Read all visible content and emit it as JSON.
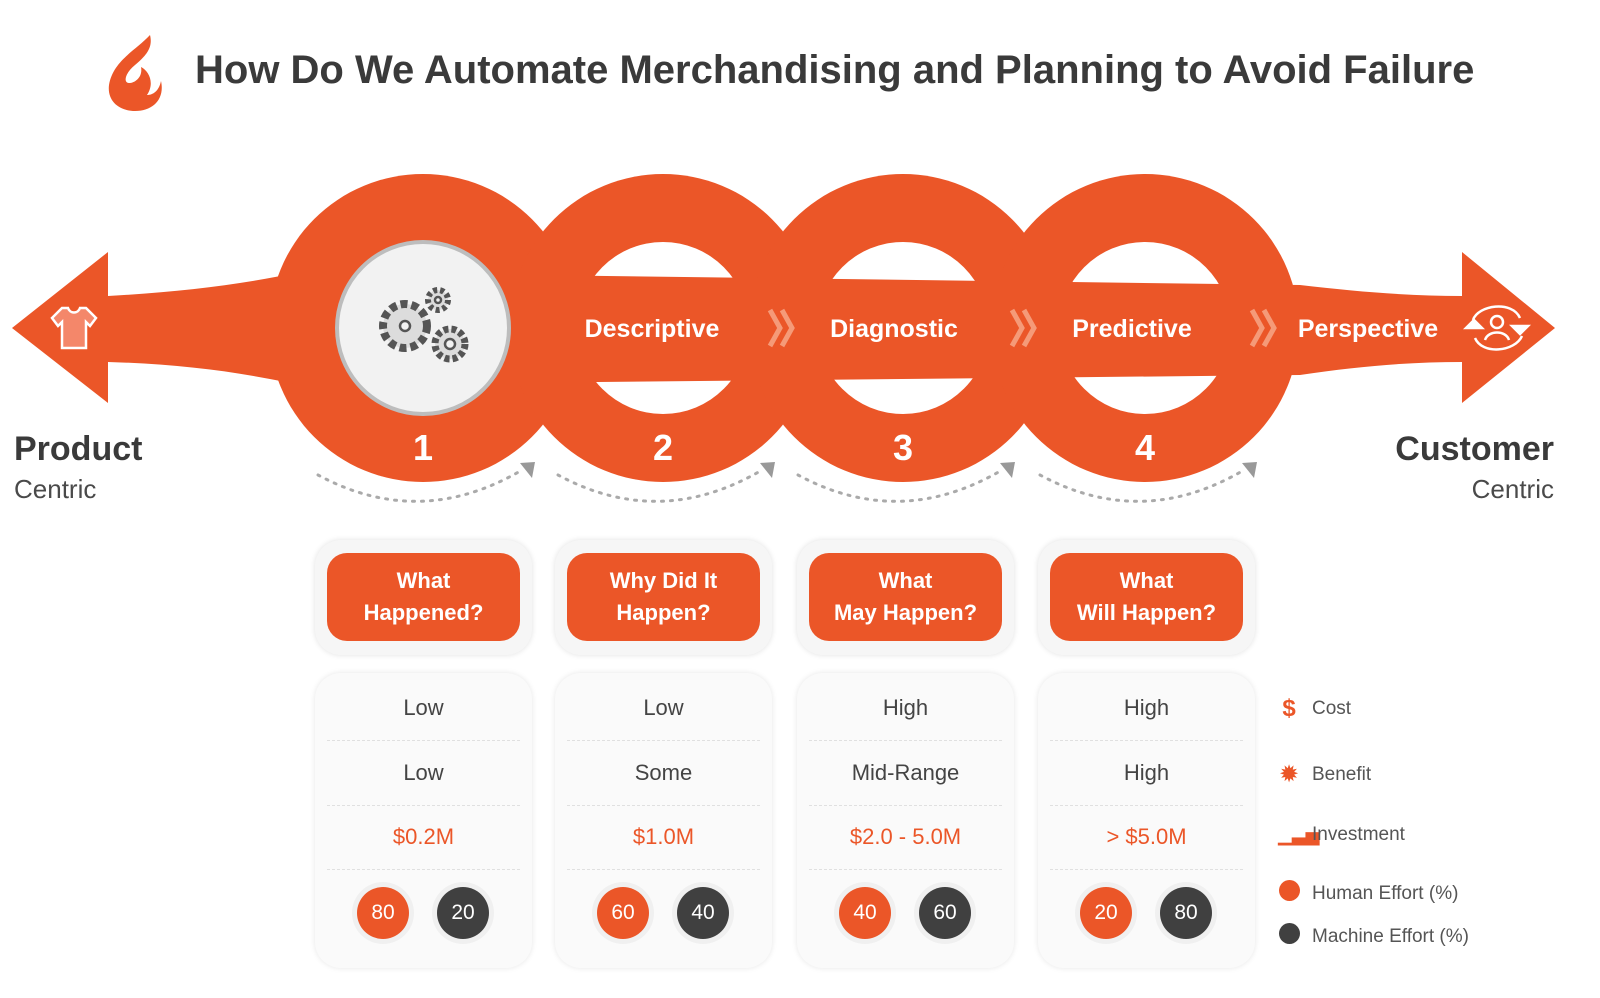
{
  "title": "How Do We Automate Merchandising and Planning to Avoid Failure",
  "colors": {
    "accent": "#EB5628",
    "dark": "#404040",
    "light": "#f6f6f6"
  },
  "left_end": {
    "title": "Product",
    "subtitle": "Centric",
    "icon": "tshirt-icon"
  },
  "right_end": {
    "title": "Customer",
    "subtitle": "Centric",
    "icon": "customer-cycle-icon"
  },
  "stages": [
    {
      "number": "1",
      "label": "",
      "icon": "gears-icon",
      "question": "What\nHappened?",
      "cost": "Low",
      "benefit": "Low",
      "investment": "$0.2M",
      "human": "80",
      "machine": "20"
    },
    {
      "number": "2",
      "label": "Descriptive",
      "question": "Why Did It\nHappen?",
      "cost": "Low",
      "benefit": "Some",
      "investment": "$1.0M",
      "human": "60",
      "machine": "40"
    },
    {
      "number": "3",
      "label": "Diagnostic",
      "question": "What\nMay Happen?",
      "cost": "High",
      "benefit": "Mid-Range",
      "investment": "$2.0 - 5.0M",
      "human": "40",
      "machine": "60"
    },
    {
      "number": "4",
      "label": "Predictive",
      "question": "What\nWill Happen?",
      "cost": "High",
      "benefit": "High",
      "investment": "> $5.0M",
      "human": "20",
      "machine": "80"
    }
  ],
  "final_label": "Perspective",
  "legend": [
    {
      "label": "Cost",
      "icon": "dollar-icon"
    },
    {
      "label": "Benefit",
      "icon": "badge-icon"
    },
    {
      "label": "Investment",
      "icon": "growth-chart-icon"
    },
    {
      "label": "Human Effort (%)",
      "icon": "orange-dot-icon"
    },
    {
      "label": "Machine Effort (%)",
      "icon": "dark-dot-icon"
    }
  ]
}
